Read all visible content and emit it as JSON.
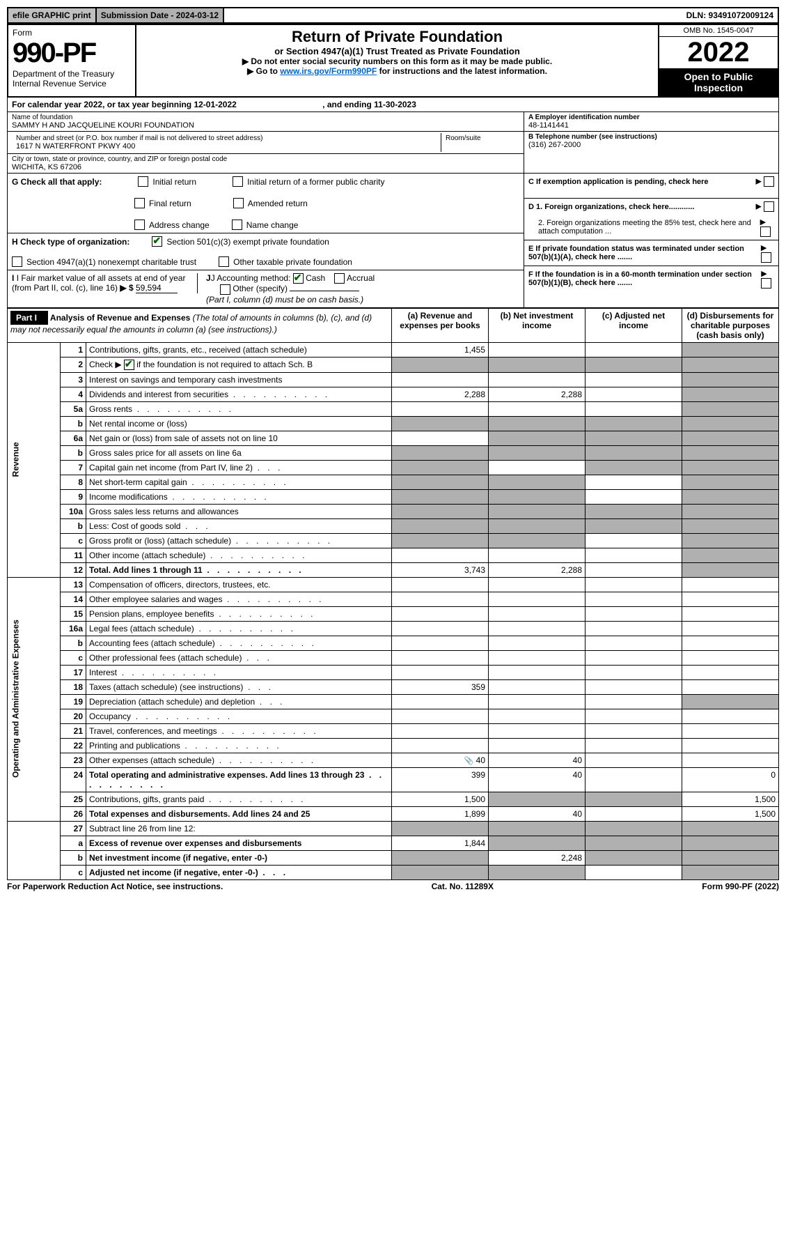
{
  "top": {
    "efile": "efile GRAPHIC print",
    "sub_label": "Submission Date - 2024-03-12",
    "dln": "DLN: 93491072009124"
  },
  "header": {
    "form": "Form",
    "form_num": "990-PF",
    "dept": "Department of the Treasury",
    "irs": "Internal Revenue Service",
    "title": "Return of Private Foundation",
    "subtitle": "or Section 4947(a)(1) Trust Treated as Private Foundation",
    "note1": "▶ Do not enter social security numbers on this form as it may be made public.",
    "note2_pre": "▶ Go to ",
    "note2_link": "www.irs.gov/Form990PF",
    "note2_post": " for instructions and the latest information.",
    "omb": "OMB No. 1545-0047",
    "year": "2022",
    "open": "Open to Public Inspection"
  },
  "cal": {
    "text": "For calendar year 2022, or tax year beginning 12-01-2022",
    "ending": ", and ending 11-30-2023"
  },
  "id": {
    "name_label": "Name of foundation",
    "name": "SAMMY H AND JACQUELINE KOURI FOUNDATION",
    "addr_label": "Number and street (or P.O. box number if mail is not delivered to street address)",
    "addr": "1617 N WATERFRONT PKWY 400",
    "room_label": "Room/suite",
    "city_label": "City or town, state or province, country, and ZIP or foreign postal code",
    "city": "WICHITA, KS  67206",
    "ein_label": "A Employer identification number",
    "ein": "48-1141441",
    "phone_label": "B Telephone number (see instructions)",
    "phone": "(316) 267-2000",
    "c_label": "C If exemption application is pending, check here",
    "d1": "D 1. Foreign organizations, check here............",
    "d2": "2. Foreign organizations meeting the 85% test, check here and attach computation ...",
    "e": "E  If private foundation status was terminated under section 507(b)(1)(A), check here .......",
    "f": "F  If the foundation is in a 60-month termination under section 507(b)(1)(B), check here ......."
  },
  "g": {
    "label": "G Check all that apply:",
    "opts": [
      "Initial return",
      "Final return",
      "Address change",
      "Initial return of a former public charity",
      "Amended return",
      "Name change"
    ]
  },
  "h": {
    "label": "H Check type of organization:",
    "opt1": "Section 501(c)(3) exempt private foundation",
    "opt2": "Section 4947(a)(1) nonexempt charitable trust",
    "opt3": "Other taxable private foundation"
  },
  "i": {
    "label": "I Fair market value of all assets at end of year (from Part II, col. (c), line 16)",
    "prefix": "▶ $",
    "value": "59,594"
  },
  "j": {
    "label": "J Accounting method:",
    "cash": "Cash",
    "accrual": "Accrual",
    "other": "Other (specify)",
    "note": "(Part I, column (d) must be on cash basis.)"
  },
  "part1": {
    "label": "Part I",
    "title": "Analysis of Revenue and Expenses",
    "note": "(The total of amounts in columns (b), (c), and (d) may not necessarily equal the amounts in column (a) (see instructions).)",
    "col_a": "(a)  Revenue and expenses per books",
    "col_b": "(b)  Net investment income",
    "col_c": "(c)  Adjusted net income",
    "col_d": "(d)  Disbursements for charitable purposes (cash basis only)"
  },
  "sidelabels": {
    "revenue": "Revenue",
    "expenses": "Operating and Administrative Expenses"
  },
  "lines": [
    {
      "n": "1",
      "t": "Contributions, gifts, grants, etc., received (attach schedule)",
      "a": "1,455",
      "b": "",
      "c": "",
      "d": "",
      "shade_d": true
    },
    {
      "n": "2",
      "t": "Check ▶ [✔] if the foundation is not required to attach Sch. B",
      "a": "",
      "b": "",
      "c": "",
      "d": "",
      "shade_all": true,
      "nobold": true
    },
    {
      "n": "3",
      "t": "Interest on savings and temporary cash investments",
      "a": "",
      "b": "",
      "c": "",
      "d": "",
      "shade_d": true
    },
    {
      "n": "4",
      "t": "Dividends and interest from securities",
      "dots": true,
      "a": "2,288",
      "b": "2,288",
      "c": "",
      "d": "",
      "shade_d": true
    },
    {
      "n": "5a",
      "t": "Gross rents",
      "dots": true,
      "a": "",
      "b": "",
      "c": "",
      "d": "",
      "shade_d": true
    },
    {
      "n": "b",
      "t": "Net rental income or (loss)",
      "underline": true,
      "shade_abcd": true
    },
    {
      "n": "6a",
      "t": "Net gain or (loss) from sale of assets not on line 10",
      "a": "",
      "shade_bcd": true,
      "shade_d": true
    },
    {
      "n": "b",
      "t": "Gross sales price for all assets on line 6a",
      "underline": true,
      "shade_abcd": true
    },
    {
      "n": "7",
      "t": "Capital gain net income (from Part IV, line 2)",
      "short": true,
      "shade_a": true,
      "b": "",
      "shade_cd": true
    },
    {
      "n": "8",
      "t": "Net short-term capital gain",
      "dots": true,
      "shade_ab": true,
      "c": "",
      "shade_d": true
    },
    {
      "n": "9",
      "t": "Income modifications",
      "dots": true,
      "shade_ab": true,
      "c": "",
      "shade_d": true
    },
    {
      "n": "10a",
      "t": "Gross sales less returns and allowances",
      "inset": true,
      "shade_abcd": true
    },
    {
      "n": "b",
      "t": "Less: Cost of goods sold",
      "inset": true,
      "dots_short": true,
      "shade_abcd": true
    },
    {
      "n": "c",
      "t": "Gross profit or (loss) (attach schedule)",
      "dots": true,
      "shade_ab": true,
      "c": "",
      "shade_d": true
    },
    {
      "n": "11",
      "t": "Other income (attach schedule)",
      "dots": true,
      "a": "",
      "b": "",
      "c": "",
      "shade_d": true
    },
    {
      "n": "12",
      "t": "Total. Add lines 1 through 11",
      "bold": true,
      "dots": true,
      "a": "3,743",
      "b": "2,288",
      "c": "",
      "shade_d": true
    }
  ],
  "exp_lines": [
    {
      "n": "13",
      "t": "Compensation of officers, directors, trustees, etc.",
      "a": "",
      "b": "",
      "c": "",
      "d": ""
    },
    {
      "n": "14",
      "t": "Other employee salaries and wages",
      "dots": true
    },
    {
      "n": "15",
      "t": "Pension plans, employee benefits",
      "dots": true
    },
    {
      "n": "16a",
      "t": "Legal fees (attach schedule)",
      "dots": true
    },
    {
      "n": "b",
      "t": "Accounting fees (attach schedule)",
      "dots": true
    },
    {
      "n": "c",
      "t": "Other professional fees (attach schedule)",
      "short": true
    },
    {
      "n": "17",
      "t": "Interest",
      "dots": true
    },
    {
      "n": "18",
      "t": "Taxes (attach schedule) (see instructions)",
      "short": true,
      "a": "359"
    },
    {
      "n": "19",
      "t": "Depreciation (attach schedule) and depletion",
      "short": true,
      "shade_d": true
    },
    {
      "n": "20",
      "t": "Occupancy",
      "dots": true
    },
    {
      "n": "21",
      "t": "Travel, conferences, and meetings",
      "dots": true
    },
    {
      "n": "22",
      "t": "Printing and publications",
      "dots": true
    },
    {
      "n": "23",
      "t": "Other expenses (attach schedule)",
      "dots": true,
      "attach": true,
      "a": "40",
      "b": "40"
    },
    {
      "n": "24",
      "t": "Total operating and administrative expenses. Add lines 13 through 23",
      "bold": true,
      "dots": true,
      "a": "399",
      "b": "40",
      "c": "",
      "d": "0"
    },
    {
      "n": "25",
      "t": "Contributions, gifts, grants paid",
      "dots": true,
      "a": "1,500",
      "shade_bc": true,
      "d": "1,500"
    },
    {
      "n": "26",
      "t": "Total expenses and disbursements. Add lines 24 and 25",
      "bold": true,
      "a": "1,899",
      "b": "40",
      "c": "",
      "d": "1,500"
    }
  ],
  "net_lines": [
    {
      "n": "27",
      "t": "Subtract line 26 from line 12:",
      "shade_abcd": true
    },
    {
      "n": "a",
      "t": "Excess of revenue over expenses and disbursements",
      "bold": true,
      "a": "1,844",
      "shade_bcd": true
    },
    {
      "n": "b",
      "t": "Net investment income (if negative, enter -0-)",
      "bold": true,
      "shade_a": true,
      "b": "2,248",
      "shade_cd": true
    },
    {
      "n": "c",
      "t": "Adjusted net income (if negative, enter -0-)",
      "bold": true,
      "short": true,
      "shade_ab": true,
      "c": "",
      "shade_d": true
    }
  ],
  "footer": {
    "left": "For Paperwork Reduction Act Notice, see instructions.",
    "mid": "Cat. No. 11289X",
    "right": "Form 990-PF (2022)"
  },
  "colors": {
    "shaded": "#b0b0b0",
    "black": "#000000",
    "link": "#0066cc",
    "checkgreen": "#006400"
  }
}
